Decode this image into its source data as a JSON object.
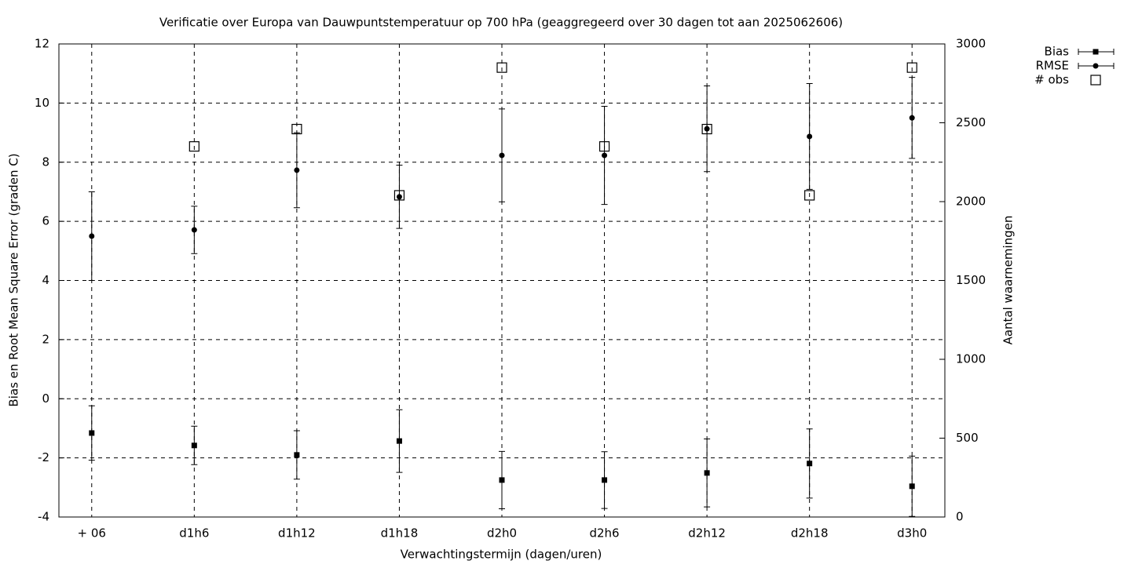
{
  "chart_data": {
    "type": "errorbar",
    "title": "Verificatie over Europa van Dauwpuntstemperatuur op 700 hPa (geaggregeerd over 30 dagen tot aan 2025062606)",
    "x_label": "Verwachtingstermijn (dagen/uren)",
    "y_label": "Bias en Root Mean Square Error (graden C)",
    "y2_label": "Aantal waarnemingen",
    "categories": [
      "+ 06",
      "d1h6",
      "d1h12",
      "d1h18",
      "d2h0",
      "d2h6",
      "d2h12",
      "d2h18",
      "d3h0"
    ],
    "series": [
      {
        "name": "Bias",
        "color": "#000000",
        "marker": "square",
        "values": [
          -1.16,
          -1.58,
          -1.9,
          -1.43,
          -2.75,
          -2.75,
          -2.51,
          -2.19,
          -2.96
        ],
        "errors": [
          0.92,
          0.65,
          0.82,
          1.06,
          0.97,
          0.96,
          1.15,
          1.17,
          1.02
        ]
      },
      {
        "name": "RMSE",
        "color": "#000000",
        "marker": "circle",
        "values": [
          5.5,
          5.71,
          7.73,
          6.83,
          8.23,
          8.23,
          9.13,
          8.87,
          9.5
        ],
        "errors": [
          1.5,
          0.8,
          1.27,
          1.07,
          1.57,
          1.66,
          1.45,
          1.79,
          1.37
        ]
      },
      {
        "name": "# obs",
        "color": "#000000",
        "marker": "open-square",
        "axis": "y2",
        "values": [
          null,
          2350,
          2460,
          2040,
          2850,
          2350,
          2460,
          2040,
          2850
        ]
      }
    ],
    "ylim": [
      -4,
      12
    ],
    "yticks": [
      -4,
      -2,
      0,
      2,
      4,
      6,
      8,
      10,
      12
    ],
    "y2lim": [
      0,
      3000
    ],
    "y2ticks": [
      0,
      500,
      1000,
      1500,
      2000,
      2500,
      3000
    ],
    "grid": true,
    "legend": "top-right"
  }
}
